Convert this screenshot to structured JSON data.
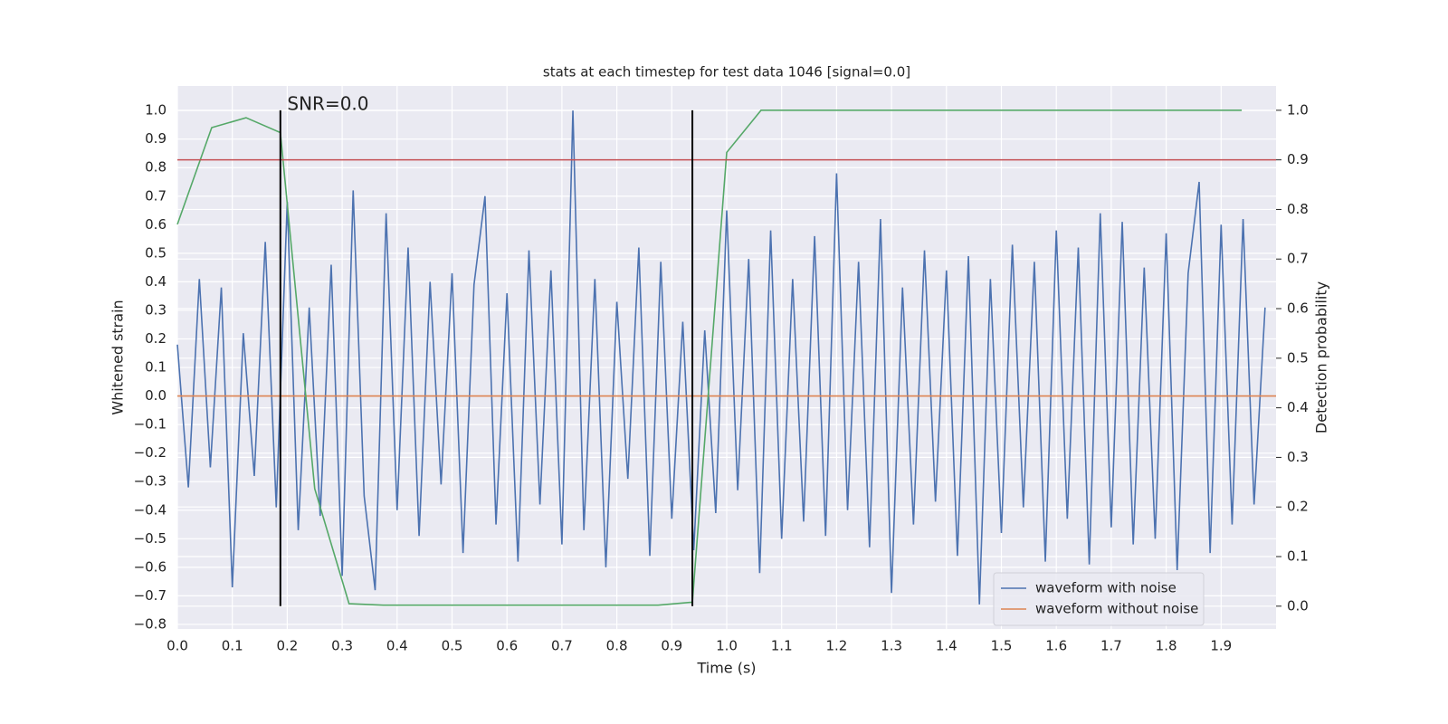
{
  "chart_data": {
    "type": "line",
    "title": "stats at each timestep for test data 1046 [signal=0.0]",
    "xlabel": "Time (s)",
    "ylabel": "Whitened strain",
    "y2label": "Detection probability",
    "xlim": [
      0,
      2.0
    ],
    "ylim": [
      -0.816,
      1.086
    ],
    "y2lim": [
      -0.046,
      1.049
    ],
    "xticks": [
      {
        "value": 0,
        "label": "0.0"
      },
      {
        "value": 0.1,
        "label": "0.1"
      },
      {
        "value": 0.2,
        "label": "0.2"
      },
      {
        "value": 0.3,
        "label": "0.3"
      },
      {
        "value": 0.4,
        "label": "0.4"
      },
      {
        "value": 0.5,
        "label": "0.5"
      },
      {
        "value": 0.6,
        "label": "0.6"
      },
      {
        "value": 0.7,
        "label": "0.7"
      },
      {
        "value": 0.8,
        "label": "0.8"
      },
      {
        "value": 0.9,
        "label": "0.9"
      },
      {
        "value": 1.0,
        "label": "1.0"
      },
      {
        "value": 1.1,
        "label": "1.1"
      },
      {
        "value": 1.2,
        "label": "1.2"
      },
      {
        "value": 1.3,
        "label": "1.3"
      },
      {
        "value": 1.4,
        "label": "1.4"
      },
      {
        "value": 1.5,
        "label": "1.5"
      },
      {
        "value": 1.6,
        "label": "1.6"
      },
      {
        "value": 1.7,
        "label": "1.7"
      },
      {
        "value": 1.8,
        "label": "1.8"
      },
      {
        "value": 1.9,
        "label": "1.9"
      }
    ],
    "yticks": [
      {
        "value": -0.8,
        "label": "−0.8"
      },
      {
        "value": -0.7,
        "label": "−0.7"
      },
      {
        "value": -0.6,
        "label": "−0.6"
      },
      {
        "value": -0.5,
        "label": "−0.5"
      },
      {
        "value": -0.4,
        "label": "−0.4"
      },
      {
        "value": -0.3,
        "label": "−0.3"
      },
      {
        "value": -0.2,
        "label": "−0.2"
      },
      {
        "value": -0.1,
        "label": "−0.1"
      },
      {
        "value": 0,
        "label": "0.0"
      },
      {
        "value": 0.1,
        "label": "0.1"
      },
      {
        "value": 0.2,
        "label": "0.2"
      },
      {
        "value": 0.3,
        "label": "0.3"
      },
      {
        "value": 0.4,
        "label": "0.4"
      },
      {
        "value": 0.5,
        "label": "0.5"
      },
      {
        "value": 0.6,
        "label": "0.6"
      },
      {
        "value": 0.7,
        "label": "0.7"
      },
      {
        "value": 0.8,
        "label": "0.8"
      },
      {
        "value": 0.9,
        "label": "0.9"
      },
      {
        "value": 1.0,
        "label": "1.0"
      }
    ],
    "y2ticks": [
      {
        "value": 0,
        "label": "0.0"
      },
      {
        "value": 0.1,
        "label": "0.1"
      },
      {
        "value": 0.2,
        "label": "0.2"
      },
      {
        "value": 0.3,
        "label": "0.3"
      },
      {
        "value": 0.4,
        "label": "0.4"
      },
      {
        "value": 0.5,
        "label": "0.5"
      },
      {
        "value": 0.6,
        "label": "0.6"
      },
      {
        "value": 0.7,
        "label": "0.7"
      },
      {
        "value": 0.8,
        "label": "0.8"
      },
      {
        "value": 0.9,
        "label": "0.9"
      },
      {
        "value": 1.0,
        "label": "1.0"
      }
    ],
    "grid": true,
    "legend": "lower right",
    "series": [
      {
        "name": "waveform with noise",
        "color": "#4c72b0",
        "x": [
          0,
          0.02,
          0.04,
          0.06,
          0.08,
          0.1,
          0.12,
          0.14,
          0.16,
          0.18,
          0.2,
          0.22,
          0.24,
          0.26,
          0.28,
          0.3,
          0.32,
          0.34,
          0.36,
          0.38,
          0.4,
          0.42,
          0.44,
          0.46,
          0.48,
          0.5,
          0.52,
          0.54,
          0.56,
          0.58,
          0.6,
          0.62,
          0.64,
          0.66,
          0.68,
          0.7,
          0.72,
          0.74,
          0.76,
          0.78,
          0.8,
          0.82,
          0.84,
          0.86,
          0.88,
          0.9,
          0.92,
          0.94,
          0.96,
          0.98,
          1.0,
          1.02,
          1.04,
          1.06,
          1.08,
          1.1,
          1.12,
          1.14,
          1.16,
          1.18,
          1.2,
          1.22,
          1.24,
          1.26,
          1.28,
          1.3,
          1.32,
          1.34,
          1.36,
          1.38,
          1.4,
          1.42,
          1.44,
          1.46,
          1.48,
          1.5,
          1.52,
          1.54,
          1.56,
          1.58,
          1.6,
          1.62,
          1.64,
          1.66,
          1.68,
          1.7,
          1.72,
          1.74,
          1.76,
          1.78,
          1.8,
          1.82,
          1.84,
          1.86,
          1.88,
          1.9,
          1.92,
          1.94,
          1.96,
          1.98
        ],
        "values": [
          0.18,
          -0.32,
          0.41,
          -0.25,
          0.38,
          -0.67,
          0.22,
          -0.28,
          0.54,
          -0.39,
          0.68,
          -0.47,
          0.31,
          -0.42,
          0.46,
          -0.63,
          0.72,
          -0.35,
          -0.68,
          0.64,
          -0.4,
          0.52,
          -0.49,
          0.4,
          -0.31,
          0.43,
          -0.55,
          0.39,
          0.7,
          -0.45,
          0.36,
          -0.58,
          0.51,
          -0.38,
          0.44,
          -0.52,
          1.0,
          -0.47,
          0.41,
          -0.6,
          0.33,
          -0.29,
          0.52,
          -0.56,
          0.47,
          -0.43,
          0.26,
          -0.54,
          0.23,
          -0.41,
          0.65,
          -0.33,
          0.48,
          -0.62,
          0.58,
          -0.5,
          0.41,
          -0.44,
          0.56,
          -0.49,
          0.78,
          -0.4,
          0.47,
          -0.53,
          0.62,
          -0.69,
          0.38,
          -0.45,
          0.51,
          -0.37,
          0.44,
          -0.56,
          0.49,
          -0.73,
          0.41,
          -0.48,
          0.53,
          -0.39,
          0.47,
          -0.58,
          0.58,
          -0.43,
          0.52,
          -0.59,
          0.64,
          -0.46,
          0.61,
          -0.52,
          0.45,
          -0.5,
          0.57,
          -0.61,
          0.43,
          0.75,
          -0.55,
          0.6,
          -0.45,
          0.62,
          -0.38,
          0.31
        ]
      },
      {
        "name": "waveform without noise",
        "color": "#dd8452",
        "x": [
          0,
          2.0
        ],
        "values": [
          0,
          0
        ]
      },
      {
        "color": "#55a868",
        "axis": "y2",
        "x": [
          0,
          0.0625,
          0.125,
          0.1875,
          0.25,
          0.3125,
          0.375,
          0.4375,
          0.5,
          0.5625,
          0.625,
          0.6875,
          0.75,
          0.8125,
          0.875,
          0.9375,
          1.0,
          1.0625,
          1.125,
          1.1875,
          1.25,
          1.3125,
          1.375,
          1.4375,
          1.5,
          1.5625,
          1.625,
          1.6875,
          1.75,
          1.8125,
          1.875,
          1.9375
        ],
        "values": [
          0.77,
          0.965,
          0.985,
          0.955,
          0.237,
          0.005,
          0.002,
          0.002,
          0.002,
          0.002,
          0.002,
          0.002,
          0.002,
          0.002,
          0.002,
          0.008,
          0.915,
          1.0,
          1.0,
          1.0,
          1.0,
          1.0,
          1.0,
          1.0,
          1.0,
          1.0,
          1.0,
          1.0,
          1.0,
          1.0,
          1.0,
          1.0
        ]
      }
    ],
    "threshold": {
      "y": 0.9,
      "axis": "y2",
      "color": "#c44e52"
    },
    "vlines": {
      "x": [
        0.1875,
        0.9375
      ],
      "ymin": 0,
      "ymax": 1.0,
      "axis": "y2",
      "color": "#000000"
    },
    "annotation": {
      "text": "SNR=0.0",
      "x": 0.2,
      "y": 1.02
    }
  }
}
